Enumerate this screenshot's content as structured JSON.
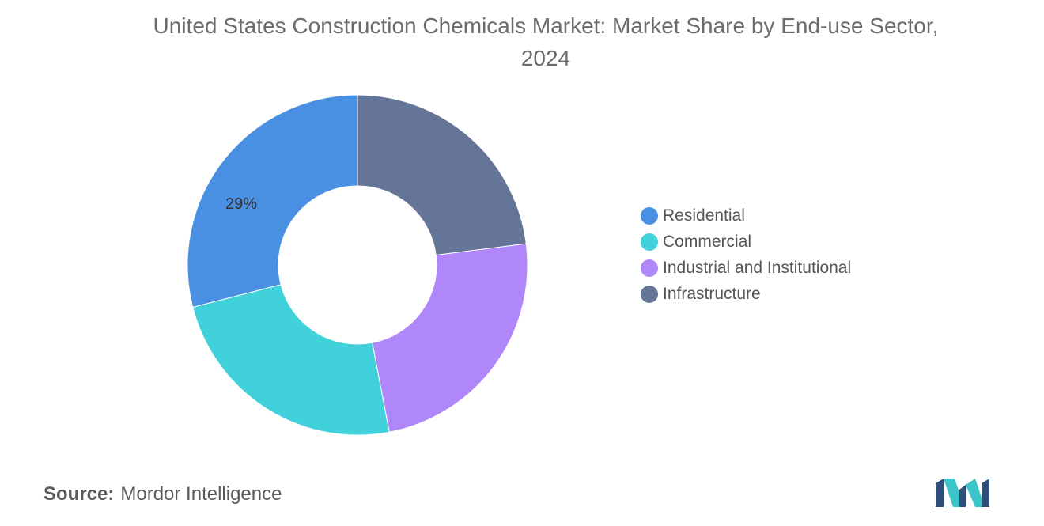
{
  "title": "United States Construction Chemicals Market: Market Share by End-use Sector, 2024",
  "source": {
    "label": "Source:",
    "value": "Mordor Intelligence"
  },
  "logo": "mordor-intelligence-logo",
  "chart_data": {
    "type": "pie",
    "donut": true,
    "title": "United States Construction Chemicals Market: Market Share by End-use Sector, 2024",
    "legend_position": "right",
    "series": [
      {
        "name": "Residential",
        "value": 29,
        "label": "29%",
        "color": "#4a90e2"
      },
      {
        "name": "Commercial",
        "value": 24,
        "label": "",
        "color": "#40d1db"
      },
      {
        "name": "Industrial and Institutional",
        "value": 24,
        "label": "",
        "color": "#b086fb"
      },
      {
        "name": "Infrastructure",
        "value": 23,
        "label": "",
        "color": "#647598"
      }
    ],
    "start": "top",
    "direction": "counter-clockwise"
  }
}
